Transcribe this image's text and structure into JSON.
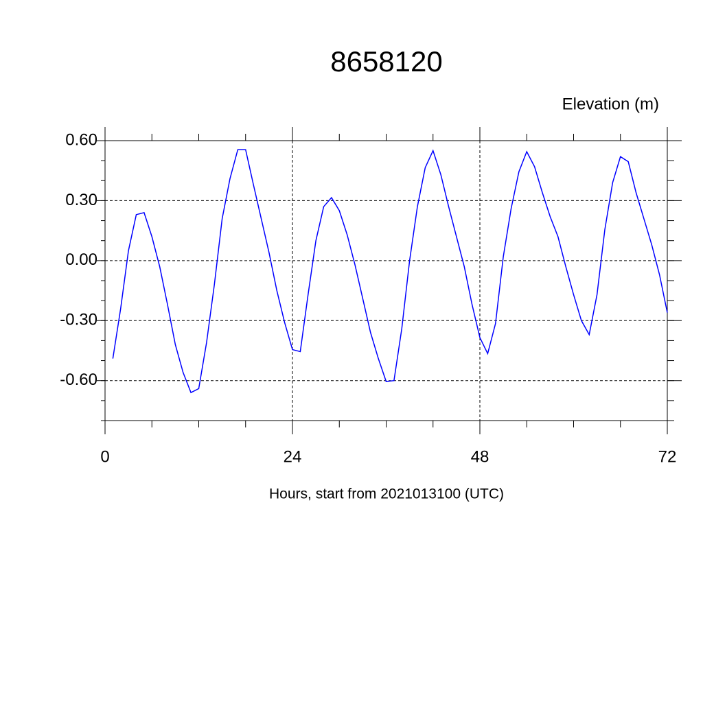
{
  "chart_data": {
    "type": "line",
    "title": "8658120",
    "y_label": "Elevation (m)",
    "x_label": "Hours, start from 2021013100 (UTC)",
    "x": [
      1,
      2,
      3,
      4,
      5,
      6,
      7,
      8,
      9,
      10,
      11,
      12,
      13,
      14,
      15,
      16,
      17,
      18,
      19,
      20,
      21,
      22,
      23,
      24,
      25,
      26,
      27,
      28,
      29,
      30,
      31,
      32,
      33,
      34,
      35,
      36,
      37,
      38,
      39,
      40,
      41,
      42,
      43,
      44,
      45,
      46,
      47,
      48,
      49,
      50,
      51,
      52,
      53,
      54,
      55,
      56,
      57,
      58,
      59,
      60,
      61,
      62,
      63,
      64,
      65,
      66,
      67,
      68,
      69,
      70,
      71,
      72
    ],
    "series": [
      {
        "color": "#0000ff",
        "values": [
          -0.49,
          -0.24,
          0.05,
          0.23,
          0.24,
          0.12,
          -0.03,
          -0.22,
          -0.42,
          -0.56,
          -0.66,
          -0.64,
          -0.41,
          -0.12,
          0.21,
          0.41,
          0.555,
          0.555,
          0.38,
          0.21,
          0.04,
          -0.15,
          -0.31,
          -0.445,
          -0.455,
          -0.17,
          0.1,
          0.27,
          0.315,
          0.25,
          0.13,
          -0.02,
          -0.19,
          -0.36,
          -0.49,
          -0.605,
          -0.6,
          -0.34,
          0,
          0.27,
          0.465,
          0.55,
          0.43,
          0.27,
          0.12,
          -0.03,
          -0.22,
          -0.385,
          -0.465,
          -0.315,
          0.02,
          0.26,
          0.445,
          0.545,
          0.47,
          0.34,
          0.22,
          0.12,
          -0.03,
          -0.17,
          -0.3,
          -0.37,
          -0.17,
          0.155,
          0.39,
          0.52,
          0.495,
          0.34,
          0.21,
          0.08,
          -0.07,
          -0.26
        ]
      }
    ],
    "xlim": [
      0,
      72
    ],
    "xticks": [
      0,
      24,
      48,
      72
    ],
    "ylim": [
      -0.8,
      0.6
    ],
    "yticks": [
      {
        "value": -0.6,
        "label": "-0.60"
      },
      {
        "value": -0.3,
        "label": "-0.30"
      },
      {
        "value": 0,
        "label": "0.00"
      },
      {
        "value": 0.3,
        "label": "0.30"
      },
      {
        "value": 0.6,
        "label": "0.60"
      }
    ],
    "grid": true
  }
}
